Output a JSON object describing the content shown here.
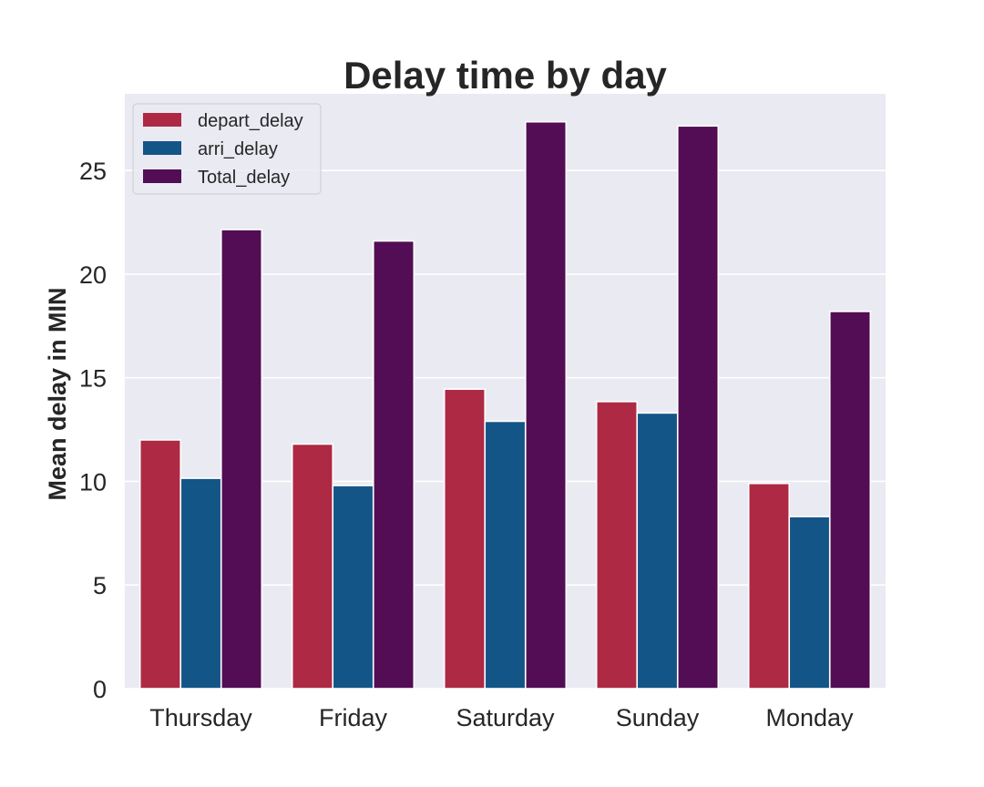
{
  "chart_data": {
    "type": "bar",
    "title": "Delay time by day",
    "xlabel": "",
    "ylabel": "Mean delay in MIN",
    "categories": [
      "Thursday",
      "Friday",
      "Saturday",
      "Sunday",
      "Monday"
    ],
    "series": [
      {
        "name": "depart_delay",
        "color": "#AE2944",
        "values": [
          12.0,
          11.8,
          14.45,
          13.85,
          9.9
        ]
      },
      {
        "name": "arri_delay",
        "color": "#145587",
        "values": [
          10.15,
          9.8,
          12.9,
          13.3,
          8.3
        ]
      },
      {
        "name": "Total_delay",
        "color": "#520D54",
        "values": [
          22.15,
          21.6,
          27.35,
          27.15,
          18.2
        ]
      }
    ],
    "ylim": [
      0,
      28.7
    ],
    "yticks": [
      0,
      5,
      10,
      15,
      20,
      25
    ],
    "grid": true,
    "legend_position": "top-left",
    "background": "#EAEAF2",
    "grid_color": "#FFFFFF"
  }
}
